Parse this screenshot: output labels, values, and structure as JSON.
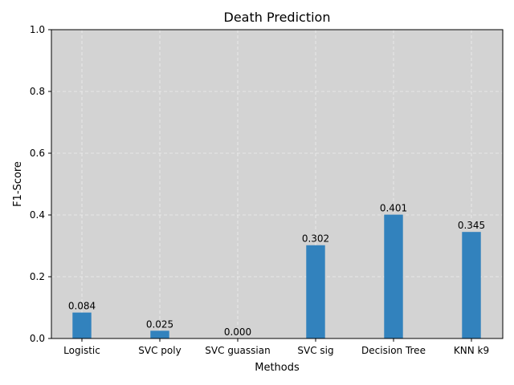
{
  "chart_data": {
    "type": "bar",
    "title": "Death Prediction",
    "xlabel": "Methods",
    "ylabel": "F1-Score",
    "categories": [
      "Logistic",
      "SVC poly",
      "SVC guassian",
      "SVC sig",
      "Decision Tree",
      "KNN k9"
    ],
    "values": [
      0.084,
      0.025,
      0.0,
      0.302,
      0.401,
      0.345
    ],
    "value_labels": [
      "0.084",
      "0.025",
      "0.000",
      "0.302",
      "0.401",
      "0.345"
    ],
    "ylim": [
      0,
      1.0
    ],
    "yticks": [
      0.0,
      0.2,
      0.4,
      0.6,
      0.8,
      1.0
    ],
    "ytick_labels": [
      "0.0",
      "0.2",
      "0.4",
      "0.6",
      "0.8",
      "1.0"
    ],
    "grid": true,
    "colors": {
      "bar": "#3282bd",
      "plot_background": "#d3d3d3",
      "grid": "#eeeeee"
    }
  }
}
